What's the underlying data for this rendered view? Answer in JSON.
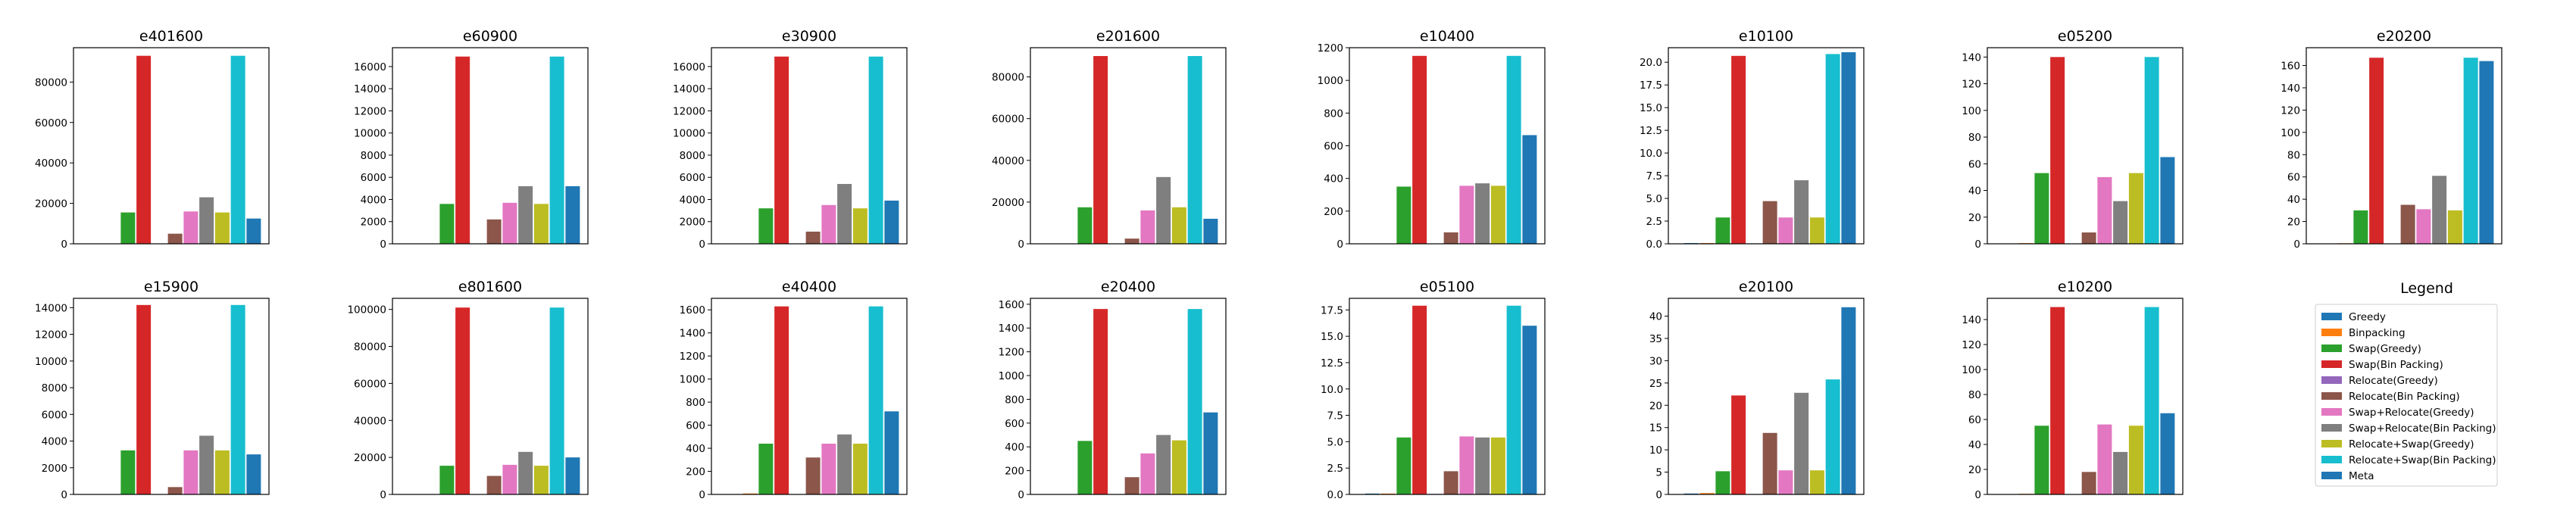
{
  "chart_data": {
    "type": "bar",
    "grid": false,
    "legend_title": "Legend",
    "series": [
      {
        "name": "Greedy",
        "color": "#1f77b4"
      },
      {
        "name": "Binpacking",
        "color": "#ff7f0e"
      },
      {
        "name": "Swap(Greedy)",
        "color": "#2ca02c"
      },
      {
        "name": "Swap(Bin Packing)",
        "color": "#d62728"
      },
      {
        "name": "Relocate(Greedy)",
        "color": "#9467bd"
      },
      {
        "name": "Relocate(Bin Packing)",
        "color": "#8c564b"
      },
      {
        "name": "Swap+Relocate(Greedy)",
        "color": "#e377c2"
      },
      {
        "name": "Swap+Relocate(Bin Packing)",
        "color": "#7f7f7f"
      },
      {
        "name": "Relocate+Swap(Greedy)",
        "color": "#bcbd22"
      },
      {
        "name": "Relocate+Swap(Bin Packing)",
        "color": "#17becf"
      },
      {
        "name": "Meta",
        "color": "#1f77b4"
      }
    ],
    "panels": [
      {
        "title": "e401600",
        "ylim": [
          0,
          97000
        ],
        "yticks": [
          "0",
          "20000",
          "40000",
          "60000",
          "80000"
        ],
        "ytick_values": [
          0,
          20000,
          40000,
          60000,
          80000
        ],
        "values": [
          0,
          0,
          15500,
          93000,
          0,
          5000,
          16000,
          23000,
          15500,
          93000,
          12500
        ]
      },
      {
        "title": "e60900",
        "ylim": [
          0,
          17700
        ],
        "yticks": [
          "0",
          "2000",
          "4000",
          "6000",
          "8000",
          "10000",
          "12000",
          "14000",
          "16000"
        ],
        "ytick_values": [
          0,
          2000,
          4000,
          6000,
          8000,
          10000,
          12000,
          14000,
          16000
        ],
        "values": [
          0,
          0,
          3600,
          16900,
          0,
          2200,
          3700,
          5200,
          3600,
          16900,
          5200
        ]
      },
      {
        "title": "e30900",
        "ylim": [
          0,
          17700
        ],
        "yticks": [
          "0",
          "2000",
          "4000",
          "6000",
          "8000",
          "10000",
          "12000",
          "14000",
          "16000"
        ],
        "ytick_values": [
          0,
          2000,
          4000,
          6000,
          8000,
          10000,
          12000,
          14000,
          16000
        ],
        "values": [
          0,
          0,
          3200,
          16900,
          0,
          1100,
          3500,
          5400,
          3200,
          16900,
          3900
        ]
      },
      {
        "title": "e201600",
        "ylim": [
          0,
          94000
        ],
        "yticks": [
          "0",
          "20000",
          "40000",
          "60000",
          "80000"
        ],
        "ytick_values": [
          0,
          20000,
          40000,
          60000,
          80000
        ],
        "values": [
          0,
          0,
          17500,
          90000,
          0,
          2500,
          16000,
          32000,
          17500,
          90000,
          12000
        ]
      },
      {
        "title": "e10400",
        "ylim": [
          0,
          1200
        ],
        "yticks": [
          "0",
          "200",
          "400",
          "600",
          "800",
          "1000",
          "1200"
        ],
        "ytick_values": [
          0,
          200,
          400,
          600,
          800,
          1000,
          1200
        ],
        "values": [
          0,
          0,
          350,
          1150,
          0,
          70,
          355,
          370,
          355,
          1150,
          665
        ]
      },
      {
        "title": "e10100",
        "ylim": [
          0,
          21.6
        ],
        "yticks": [
          "0.0",
          "2.5",
          "5.0",
          "7.5",
          "10.0",
          "12.5",
          "15.0",
          "17.5",
          "20.0"
        ],
        "ytick_values": [
          0,
          2.5,
          5,
          7.5,
          10,
          12.5,
          15,
          17.5,
          20
        ],
        "values": [
          0.08,
          0.08,
          2.9,
          20.7,
          0.05,
          4.7,
          2.9,
          7.0,
          2.9,
          20.9,
          21.1
        ]
      },
      {
        "title": "e05200",
        "ylim": [
          0,
          147
        ],
        "yticks": [
          "0",
          "20",
          "40",
          "60",
          "80",
          "100",
          "120",
          "140"
        ],
        "ytick_values": [
          0,
          20,
          40,
          60,
          80,
          100,
          120,
          140
        ],
        "values": [
          0.3,
          0.5,
          53,
          140,
          0.3,
          8.5,
          50,
          32,
          53,
          140,
          65
        ]
      },
      {
        "title": "e20200",
        "ylim": [
          0,
          176
        ],
        "yticks": [
          "0",
          "20",
          "40",
          "60",
          "80",
          "100",
          "120",
          "140",
          "160"
        ],
        "ytick_values": [
          0,
          20,
          40,
          60,
          80,
          100,
          120,
          140,
          160
        ],
        "values": [
          0.3,
          0.5,
          30,
          167,
          0.3,
          35,
          31,
          61,
          30,
          167,
          164
        ]
      },
      {
        "title": "e15900",
        "ylim": [
          0,
          14700
        ],
        "yticks": [
          "0",
          "2000",
          "4000",
          "6000",
          "8000",
          "10000",
          "12000",
          "14000"
        ],
        "ytick_values": [
          0,
          2000,
          4000,
          6000,
          8000,
          10000,
          12000,
          14000
        ],
        "values": [
          0,
          0,
          3300,
          14200,
          0,
          550,
          3300,
          4400,
          3300,
          14200,
          3000
        ]
      },
      {
        "title": "e801600",
        "ylim": [
          0,
          106000
        ],
        "yticks": [
          "0",
          "20000",
          "40000",
          "60000",
          "80000",
          "100000"
        ],
        "ytick_values": [
          0,
          20000,
          40000,
          60000,
          80000,
          100000
        ],
        "values": [
          0,
          0,
          15500,
          101000,
          0,
          10000,
          16000,
          23000,
          15500,
          101000,
          20000
        ]
      },
      {
        "title": "e40400",
        "ylim": [
          0,
          1700
        ],
        "yticks": [
          "0",
          "200",
          "400",
          "600",
          "800",
          "1000",
          "1200",
          "1400",
          "1600"
        ],
        "ytick_values": [
          0,
          200,
          400,
          600,
          800,
          1000,
          1200,
          1400,
          1600
        ],
        "values": [
          0,
          8,
          440,
          1630,
          0,
          320,
          440,
          520,
          440,
          1630,
          720
        ]
      },
      {
        "title": "e20400",
        "ylim": [
          0,
          1650
        ],
        "yticks": [
          "0",
          "200",
          "400",
          "600",
          "800",
          "1000",
          "1200",
          "1400",
          "1600"
        ],
        "ytick_values": [
          0,
          200,
          400,
          600,
          800,
          1000,
          1200,
          1400,
          1600
        ],
        "values": [
          0,
          0,
          450,
          1560,
          0,
          145,
          345,
          500,
          455,
          1560,
          690
        ]
      },
      {
        "title": "e05100",
        "ylim": [
          0,
          18.6
        ],
        "yticks": [
          "0.0",
          "2.5",
          "5.0",
          "7.5",
          "10.0",
          "12.5",
          "15.0",
          "17.5"
        ],
        "ytick_values": [
          0,
          2.5,
          5,
          7.5,
          10,
          12.5,
          15,
          17.5
        ],
        "values": [
          0.08,
          0.08,
          5.4,
          17.9,
          0.05,
          2.2,
          5.5,
          5.4,
          5.4,
          17.9,
          16.0
        ]
      },
      {
        "title": "e20100",
        "ylim": [
          0,
          44
        ],
        "yticks": [
          "0",
          "5",
          "10",
          "15",
          "20",
          "25",
          "30",
          "35",
          "40"
        ],
        "ytick_values": [
          0,
          5,
          10,
          15,
          20,
          25,
          30,
          35,
          40
        ],
        "values": [
          0.2,
          0.3,
          5.2,
          22.2,
          0.1,
          13.8,
          5.4,
          22.8,
          5.4,
          25.8,
          42.0
        ]
      },
      {
        "title": "e10200",
        "ylim": [
          0,
          157
        ],
        "yticks": [
          "0",
          "20",
          "40",
          "60",
          "80",
          "100",
          "120",
          "140"
        ],
        "ytick_values": [
          0,
          20,
          40,
          60,
          80,
          100,
          120,
          140
        ],
        "values": [
          0.3,
          0.5,
          55,
          150,
          0.3,
          18,
          56,
          34,
          55,
          150,
          65
        ]
      }
    ]
  }
}
